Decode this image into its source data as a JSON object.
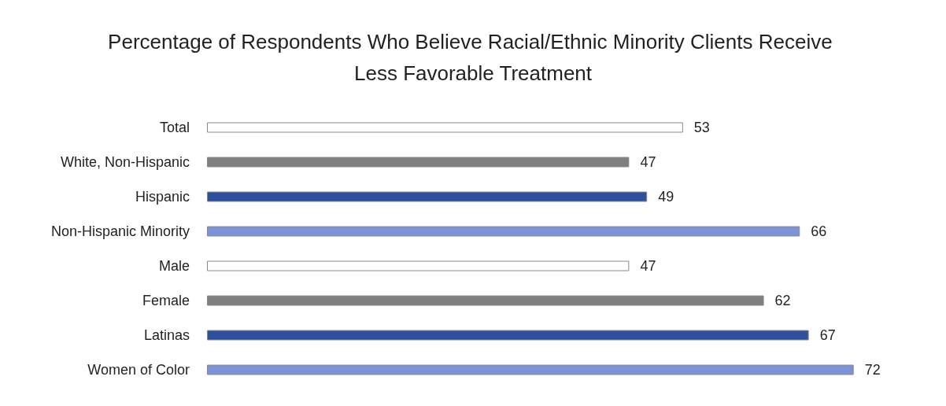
{
  "chart_data": {
    "type": "bar",
    "orientation": "horizontal",
    "title": "Percentage of Respondents Who Believe Racial/Ethnic Minority Clients Receive Less Favorable Treatment",
    "categories": [
      "Total",
      "White, Non-Hispanic",
      "Hispanic",
      "Non-Hispanic Minority",
      "Male",
      "Female",
      "Latinas",
      "Women of Color"
    ],
    "values": [
      53,
      47,
      49,
      66,
      47,
      62,
      67,
      72
    ],
    "colors": [
      "#ffffff",
      "#7f7f7f",
      "#2e4f9e",
      "#7b93d6",
      "#ffffff",
      "#7f7f7f",
      "#2e4f9e",
      "#7b93d6"
    ],
    "data_labels": true
  }
}
